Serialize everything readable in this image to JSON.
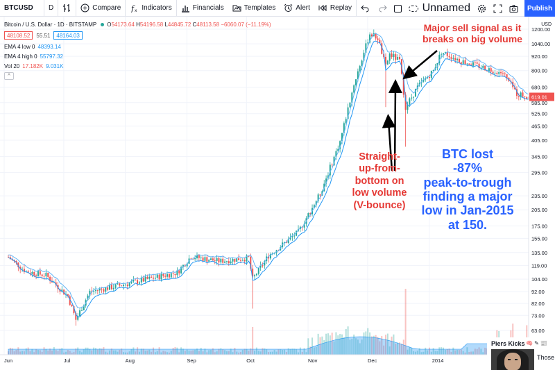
{
  "toolbar": {
    "symbol": "BTCUSD",
    "interval": "D",
    "compare": "Compare",
    "indicators": "Indicators",
    "financials": "Financials",
    "templates": "Templates",
    "alert": "Alert",
    "replay": "Replay",
    "layout_name": "Unnamed",
    "publish": "Publish"
  },
  "legend": {
    "title": "Bitcoin / U.S. Dollar · 1D · BITSTAMP",
    "ohlc": {
      "o_label": "O",
      "o": "54173.64",
      "h_label": "H",
      "h": "54196.58",
      "l_label": "L",
      "l": "44845.72",
      "c_label": "C",
      "c": "48113.58",
      "chg": "−6060.07 (−11.19%)"
    },
    "sell_price": "48108.52",
    "spread": "55.51",
    "buy_price": "48164.03",
    "ema_low_label": "EMA 4 low 0",
    "ema_low_value": "48393.14",
    "ema_high_label": "EMA 4 high 0",
    "ema_high_value": "55797.32",
    "vol_label": "Vol 20",
    "vol_a": "17.182K",
    "vol_b": "9.031K",
    "collapse": "^"
  },
  "annotations": {
    "sell_signal": [
      "Major sell signal as it",
      "breaks on big volume"
    ],
    "v_bounce": [
      "Straight-",
      "up-from-",
      "bottom on",
      "low volume",
      "(V-bounce)"
    ],
    "btc_lost": [
      "BTC lost",
      "-87%",
      "peak-to-trough",
      "finding a major",
      "low in Jan-2015",
      "at 150."
    ]
  },
  "overlay": {
    "name": "Piers Kicks",
    "emojis": "🧠 ✎ 📰",
    "text": "Those"
  },
  "colors": {
    "up": "#26a69a",
    "down": "#ef5350",
    "ema_low": "#2196f3",
    "ema_high": "#4fc3f7",
    "annotation_red": "#e53935",
    "annotation_blue": "#2962ff",
    "accent": "#2962ff"
  },
  "chart_data": {
    "type": "candlestick",
    "price_scale": "log",
    "ylabel": "USD",
    "y_ticks": [
      1200,
      1040,
      920,
      800,
      680,
      585,
      525,
      465,
      405,
      345,
      295,
      235,
      205,
      175,
      155,
      135,
      119,
      104,
      92,
      82,
      73,
      63
    ],
    "x_ticks": [
      "Jun",
      "Jul",
      "Aug",
      "Sep",
      "Oct",
      "Nov",
      "Dec",
      "2014"
    ],
    "last_price": "619.01",
    "price_path": [
      {
        "x": "Jun 1",
        "y": 129
      },
      {
        "x": "Jun 10",
        "y": 112
      },
      {
        "x": "Jun 20",
        "y": 108
      },
      {
        "x": "Jul 1",
        "y": 88
      },
      {
        "x": "Jul 5",
        "y": 70
      },
      {
        "x": "Jul 12",
        "y": 92
      },
      {
        "x": "Jul 25",
        "y": 97
      },
      {
        "x": "Aug 10",
        "y": 104
      },
      {
        "x": "Aug 25",
        "y": 111
      },
      {
        "x": "Sep 1",
        "y": 130
      },
      {
        "x": "Sep 15",
        "y": 124
      },
      {
        "x": "Sep 30",
        "y": 128
      },
      {
        "x": "Oct 2",
        "y": 104
      },
      {
        "x": "Oct 10",
        "y": 131
      },
      {
        "x": "Oct 25",
        "y": 165
      },
      {
        "x": "Nov 5",
        "y": 240
      },
      {
        "x": "Nov 15",
        "y": 400
      },
      {
        "x": "Nov 22",
        "y": 700
      },
      {
        "x": "Nov 30",
        "y": 1150
      },
      {
        "x": "Dec 4",
        "y": 1100
      },
      {
        "x": "Dec 8",
        "y": 830
      },
      {
        "x": "Dec 10",
        "y": 940
      },
      {
        "x": "Dec 15",
        "y": 880
      },
      {
        "x": "Dec 18",
        "y": 560
      },
      {
        "x": "Dec 24",
        "y": 680
      },
      {
        "x": "Jan 1",
        "y": 800
      },
      {
        "x": "Jan 5",
        "y": 960
      },
      {
        "x": "Jan 15",
        "y": 880
      },
      {
        "x": "Jan 25",
        "y": 830
      },
      {
        "x": "Feb 5",
        "y": 780
      },
      {
        "x": "Feb 12",
        "y": 640
      },
      {
        "x": "Feb 18",
        "y": 619
      }
    ]
  }
}
